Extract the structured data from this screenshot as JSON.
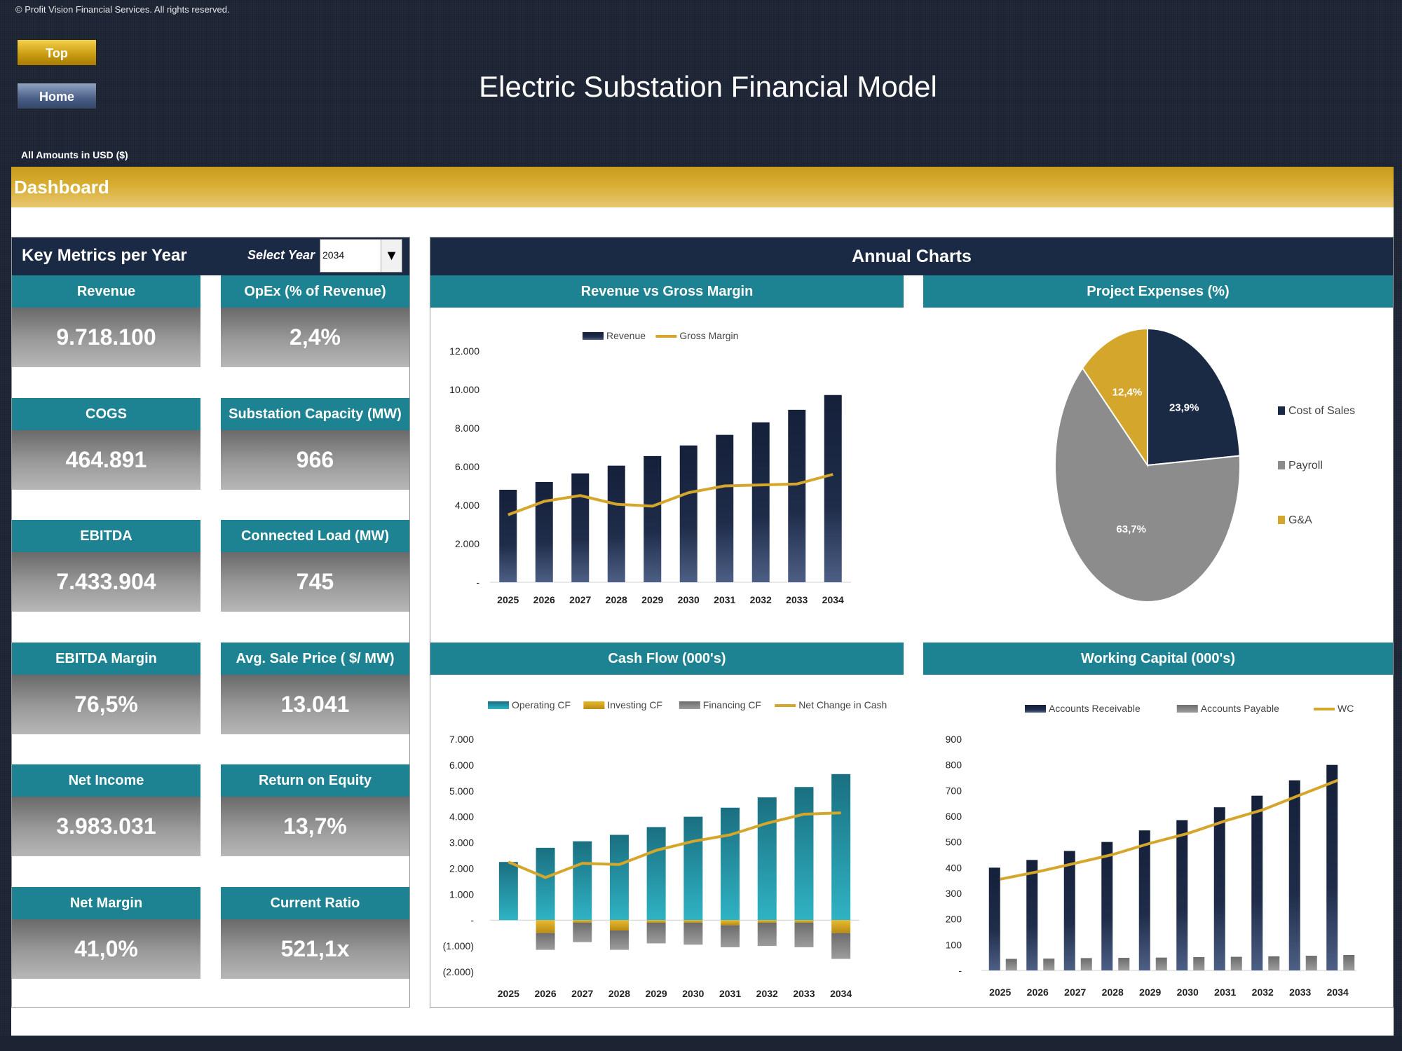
{
  "copyright": "© Profit Vision Financial Services. All rights reserved.",
  "nav": {
    "top_label": "Top",
    "home_label": "Home"
  },
  "title": "Electric Substation Financial Model",
  "amounts_note": "All Amounts in  USD ($)",
  "section_title": "Dashboard",
  "key_metrics": {
    "header": "Key Metrics per Year",
    "select_label": "Select Year",
    "selected_year": "2034",
    "cards": [
      {
        "label": "Revenue",
        "value": "9.718.100"
      },
      {
        "label": "OpEx (% of Revenue)",
        "value": "2,4%"
      },
      {
        "label": "COGS",
        "value": "464.891"
      },
      {
        "label": "Substation Capacity (MW)",
        "value": "966"
      },
      {
        "label": "EBITDA",
        "value": "7.433.904"
      },
      {
        "label": "Connected Load (MW)",
        "value": "745"
      },
      {
        "label": "EBITDA Margin",
        "value": "76,5%"
      },
      {
        "label": "Avg. Sale Price ( $/ MW)",
        "value": "13.041"
      },
      {
        "label": "Net Income",
        "value": "3.983.031"
      },
      {
        "label": "Return on Equity",
        "value": "13,7%"
      },
      {
        "label": "Net Margin",
        "value": "41,0%"
      },
      {
        "label": "Current Ratio",
        "value": "521,1x"
      }
    ]
  },
  "annual_charts_title": "Annual Charts",
  "colors": {
    "navy": "#1b2a44",
    "teal": "#1d8291",
    "gold": "#d4a72c",
    "gray": "#8c8c8c"
  },
  "chart_data": [
    {
      "type": "bar",
      "title": "Revenue vs Gross Margin",
      "categories": [
        "2025",
        "2026",
        "2027",
        "2028",
        "2029",
        "2030",
        "2031",
        "2032",
        "2033",
        "2034"
      ],
      "series": [
        {
          "name": "Revenue",
          "type": "bar",
          "values": [
            4800,
            5200,
            5650,
            6050,
            6550,
            7100,
            7650,
            8300,
            8950,
            9718
          ]
        },
        {
          "name": "Gross Margin",
          "type": "line",
          "values": [
            3500,
            4200,
            4500,
            4050,
            3950,
            4650,
            5000,
            5050,
            5100,
            5600
          ]
        }
      ],
      "ylim": [
        0,
        12000
      ],
      "yticks": [
        "-",
        "2.000",
        "4.000",
        "6.000",
        "8.000",
        "10.000",
        "12.000"
      ],
      "legend": "top"
    },
    {
      "type": "pie",
      "title": "Project Expenses (%)",
      "categories": [
        "Cost of Sales",
        "Payroll",
        "G&A"
      ],
      "values": [
        23.9,
        63.7,
        12.4
      ],
      "labels": [
        "23,9%",
        "63,7%",
        "12,4%"
      ],
      "legend": "right"
    },
    {
      "type": "bar",
      "title": "Cash Flow (000's)",
      "categories": [
        "2025",
        "2026",
        "2027",
        "2028",
        "2029",
        "2030",
        "2031",
        "2032",
        "2033",
        "2034"
      ],
      "series": [
        {
          "name": "Operating CF",
          "type": "bar",
          "values": [
            2250,
            2800,
            3050,
            3300,
            3600,
            4000,
            4350,
            4750,
            5150,
            5650
          ]
        },
        {
          "name": "Investing CF",
          "type": "bar",
          "values": [
            0,
            -500,
            -100,
            -400,
            -100,
            -100,
            -200,
            -100,
            -100,
            -500
          ]
        },
        {
          "name": "Financing CF",
          "type": "bar",
          "values": [
            0,
            -650,
            -750,
            -750,
            -800,
            -850,
            -850,
            -900,
            -950,
            -1000
          ]
        },
        {
          "name": "Net Change in Cash",
          "type": "line",
          "values": [
            2250,
            1650,
            2200,
            2150,
            2700,
            3050,
            3300,
            3750,
            4100,
            4150
          ]
        }
      ],
      "ylim": [
        -2000,
        7000
      ],
      "yticks": [
        "(2.000)",
        "(1.000)",
        "-",
        "1.000",
        "2.000",
        "3.000",
        "4.000",
        "5.000",
        "6.000",
        "7.000"
      ],
      "legend": "top"
    },
    {
      "type": "bar",
      "title": "Working Capital (000's)",
      "categories": [
        "2025",
        "2026",
        "2027",
        "2028",
        "2029",
        "2030",
        "2031",
        "2032",
        "2033",
        "2034"
      ],
      "series": [
        {
          "name": "Accounts Receivable",
          "type": "bar",
          "values": [
            400,
            430,
            465,
            500,
            545,
            585,
            635,
            680,
            740,
            800
          ]
        },
        {
          "name": "Accounts Payable",
          "type": "bar",
          "values": [
            45,
            46,
            48,
            49,
            50,
            52,
            53,
            55,
            57,
            60
          ]
        },
        {
          "name": "WC",
          "type": "line",
          "values": [
            355,
            384,
            417,
            451,
            495,
            533,
            582,
            625,
            683,
            740
          ]
        }
      ],
      "ylim": [
        0,
        900
      ],
      "yticks": [
        "-",
        "100",
        "200",
        "300",
        "400",
        "500",
        "600",
        "700",
        "800",
        "900"
      ],
      "legend": "top"
    }
  ]
}
